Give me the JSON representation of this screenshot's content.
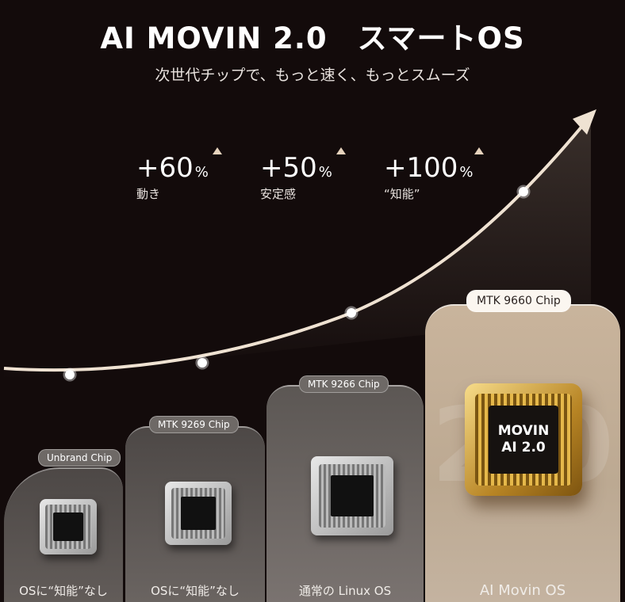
{
  "header": {
    "title": "AI MOVIN 2.0　スマートOS",
    "subtitle": "次世代チップで、もっと速く、もっとスムーズ"
  },
  "stats": [
    {
      "value": "+60",
      "unit": "%",
      "label": "動き",
      "trend": "up"
    },
    {
      "value": "+50",
      "unit": "%",
      "label": "安定感",
      "trend": "up"
    },
    {
      "value": "+100",
      "unit": "%",
      "label": "“知能”",
      "trend": "up"
    }
  ],
  "tiers": [
    {
      "chip": "Unbrand Chip",
      "os": "OSに“知能”なし"
    },
    {
      "chip": "MTK 9269 Chip",
      "os": "OSに“知能”なし"
    },
    {
      "chip": "MTK 9266 Chip",
      "os": "通常の Linux OS"
    },
    {
      "chip": "MTK 9660 Chip",
      "os": "AI Movin OS",
      "chip_text_1": "MOVIN",
      "chip_text_2": "AI 2.0",
      "watermark": "2.0"
    }
  ],
  "colors": {
    "background": "#130b0b",
    "accent": "#e6d3bd",
    "highlight_card": "#c9b49c"
  }
}
